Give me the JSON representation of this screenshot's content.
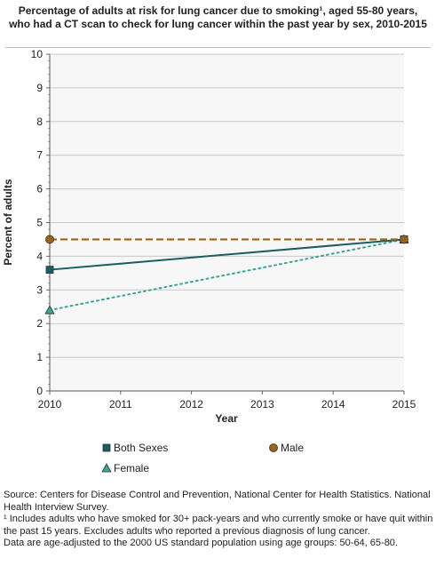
{
  "chart_data": {
    "type": "line",
    "title": "Percentage of adults at risk for lung cancer due to smoking¹, aged 55-80 years, who had a CT scan to check for lung cancer within the past year by sex, 2010-2015",
    "xlabel": "Year",
    "ylabel": "Percent of adults",
    "x": [
      2010,
      2015
    ],
    "x_ticks": [
      "2010",
      "2011",
      "2012",
      "2013",
      "2014",
      "2015"
    ],
    "y_ticks": [
      "0",
      "1",
      "2",
      "3",
      "4",
      "5",
      "6",
      "7",
      "8",
      "9",
      "10"
    ],
    "xlim": [
      2010,
      2015
    ],
    "ylim": [
      0,
      10
    ],
    "grid": true,
    "legend_position": "bottom",
    "series": [
      {
        "name": "Both Sexes",
        "values": [
          3.6,
          4.5
        ],
        "color": "#1a5e5f",
        "marker": "square",
        "dash": "solid"
      },
      {
        "name": "Male",
        "values": [
          4.5,
          4.5
        ],
        "color": "#9a6419",
        "marker": "circle",
        "dash": "dashed"
      },
      {
        "name": "Female",
        "values": [
          2.4,
          4.5
        ],
        "color": "#3aa39a",
        "marker": "triangle",
        "dash": "dotted"
      }
    ]
  },
  "notes": [
    "Source: Centers for Disease Control and Prevention, National Center for Health Statistics. National Health Interview Survey.",
    "¹ Includes adults who have smoked for 30+ pack-years and who currently smoke or have quit within the past 15 years. Excludes adults who reported a previous diagnosis of lung cancer.",
    "Data are age-adjusted to the 2000 US standard population using age groups: 50-64, 65-80."
  ]
}
